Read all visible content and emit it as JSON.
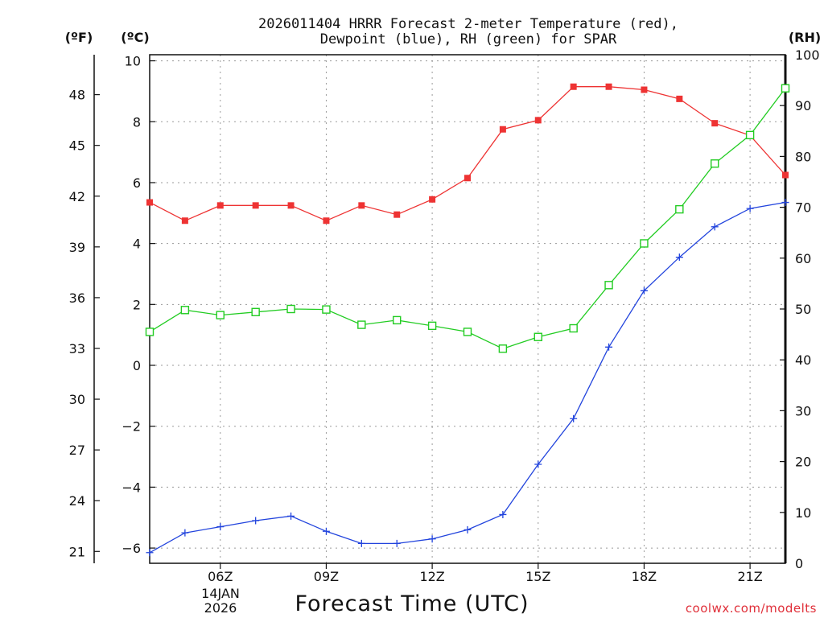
{
  "chart_data": {
    "type": "line",
    "title_lines": [
      "2026011404 HRRR Forecast 2-meter Temperature (red),",
      "Dewpoint (blue), RH (green) for SPAR"
    ],
    "xlabel": "Forecast Time (UTC)",
    "date_lines": [
      "14JAN",
      "2026"
    ],
    "credit": "coolwx.com/modelts",
    "credit_color": "#e0303a",
    "x": [
      4,
      5,
      6,
      7,
      8,
      9,
      10,
      11,
      12,
      13,
      14,
      15,
      16,
      17,
      18,
      19,
      20,
      21,
      22
    ],
    "x_ticks": [
      6,
      9,
      12,
      15,
      18,
      21
    ],
    "x_tick_labels": [
      "06Z",
      "09Z",
      "12Z",
      "15Z",
      "18Z",
      "21Z"
    ],
    "xlim": [
      4,
      22
    ],
    "left_axis": {
      "label": "(ºC)",
      "ylim": [
        -6.5,
        10.2
      ],
      "ticks": [
        -6,
        -4,
        -2,
        0,
        2,
        4,
        6,
        8,
        10
      ],
      "tick_labels": [
        "−6",
        "−4",
        "−2",
        "0",
        "2",
        "4",
        "6",
        "8",
        "10"
      ]
    },
    "fahrenheit_axis": {
      "label": "(ºF)",
      "ticks": [
        21,
        24,
        27,
        30,
        33,
        36,
        39,
        42,
        45,
        48
      ],
      "tick_labels": [
        "21",
        "24",
        "27",
        "30",
        "33",
        "36",
        "39",
        "42",
        "45",
        "48"
      ]
    },
    "right_axis": {
      "label": "(RH)",
      "ylim": [
        0,
        100
      ],
      "ticks": [
        0,
        10,
        20,
        30,
        40,
        50,
        60,
        70,
        80,
        90,
        100
      ],
      "tick_labels": [
        "0",
        "10",
        "20",
        "30",
        "40",
        "50",
        "60",
        "70",
        "80",
        "90",
        "100"
      ]
    },
    "series": [
      {
        "name": "2-meter Temperature",
        "axis": "left",
        "color": "#ee3333",
        "marker": "filled-square",
        "values": [
          5.35,
          4.75,
          5.25,
          5.25,
          5.25,
          4.75,
          5.25,
          4.95,
          5.45,
          6.15,
          7.75,
          8.05,
          9.15,
          9.15,
          9.05,
          8.75,
          7.95,
          7.55,
          6.25
        ]
      },
      {
        "name": "Dewpoint",
        "axis": "left",
        "color": "#2244dd",
        "marker": "plus",
        "values": [
          -6.15,
          -5.5,
          -5.3,
          -5.1,
          -4.95,
          -5.45,
          -5.85,
          -5.85,
          -5.7,
          -5.4,
          -4.9,
          -3.25,
          -1.75,
          0.6,
          2.45,
          3.55,
          4.55,
          5.15,
          5.35
        ]
      },
      {
        "name": "RH",
        "axis": "right",
        "color": "#22cc22",
        "marker": "open-square",
        "values": [
          45.5,
          49.8,
          48.8,
          49.4,
          50.0,
          49.9,
          46.9,
          47.8,
          46.7,
          45.5,
          42.2,
          44.5,
          46.2,
          54.7,
          62.9,
          69.6,
          78.6,
          84.2,
          93.4
        ]
      }
    ]
  }
}
